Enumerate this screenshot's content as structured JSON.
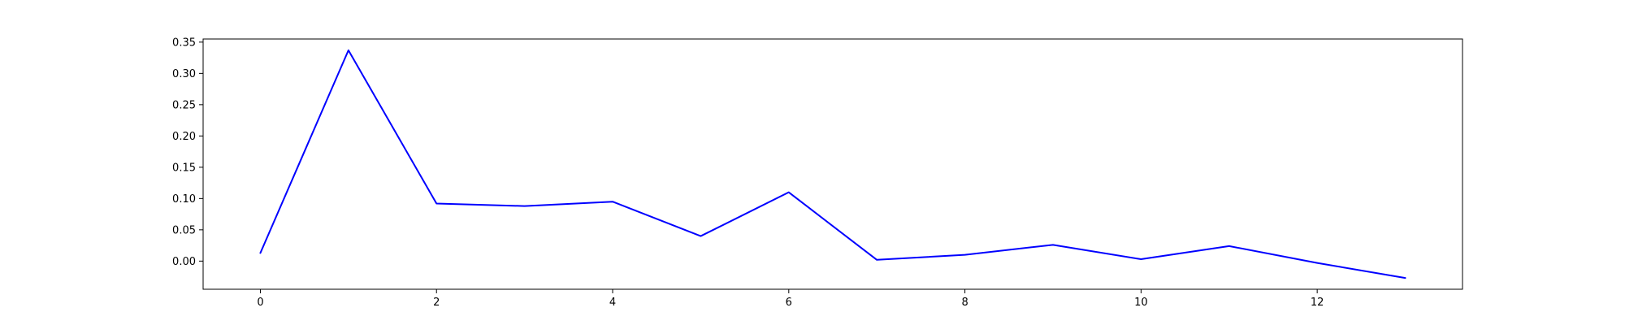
{
  "chart_data": {
    "type": "line",
    "title": "",
    "xlabel": "",
    "ylabel": "",
    "xlim": [
      -0.65,
      13.65
    ],
    "ylim": [
      -0.045,
      0.355
    ],
    "xticks": [
      0,
      2,
      4,
      6,
      8,
      10,
      12
    ],
    "xtick_labels": [
      "0",
      "2",
      "4",
      "6",
      "8",
      "10",
      "12"
    ],
    "yticks": [
      0.0,
      0.05,
      0.1,
      0.15,
      0.2,
      0.25,
      0.3,
      0.35
    ],
    "ytick_labels": [
      "0.00",
      "0.05",
      "0.10",
      "0.15",
      "0.20",
      "0.25",
      "0.30",
      "0.35"
    ],
    "grid": false,
    "series": [
      {
        "color": "#0000ff",
        "x": [
          0,
          1,
          2,
          3,
          4,
          5,
          6,
          7,
          8,
          9,
          10,
          11,
          12,
          13
        ],
        "y": [
          0.013,
          0.337,
          0.092,
          0.088,
          0.095,
          0.04,
          0.11,
          0.002,
          0.01,
          0.026,
          0.003,
          0.024,
          -0.003,
          -0.027
        ]
      }
    ]
  }
}
